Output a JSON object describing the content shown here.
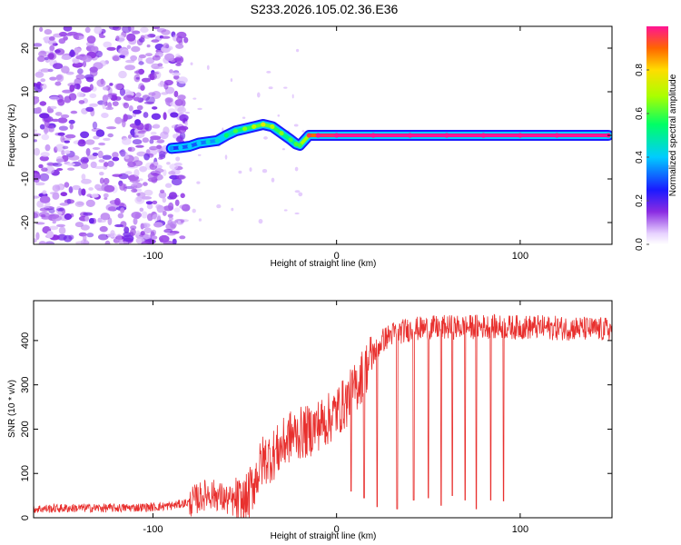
{
  "title": "S233.2026.105.02.36.E36",
  "chart_data": [
    {
      "type": "heatmap",
      "xlabel": "Height of straight line (km)",
      "ylabel": "Frequency (Hz)",
      "xlim": [
        -165,
        150
      ],
      "ylim": [
        -25,
        25
      ],
      "xticks": [
        -100,
        0,
        100
      ],
      "yticks": [
        -20,
        -10,
        0,
        10,
        20
      ],
      "colorbar": {
        "label": "Normalized spectral amplitude",
        "range": [
          0,
          1
        ],
        "ticks": [
          "0.0",
          "0.2",
          "0.4",
          "0.6",
          "0.8"
        ],
        "tick_values": [
          0,
          0.2,
          0.4,
          0.6,
          0.8
        ]
      },
      "noise_region_x": [
        -165,
        -88
      ],
      "ridge_trace": {
        "x": [
          -90,
          -85,
          -80,
          -75,
          -70,
          -65,
          -60,
          -55,
          -50,
          -45,
          -40,
          -35,
          -30,
          -25,
          -22,
          -20,
          -15,
          -10,
          0,
          20,
          40,
          60,
          80,
          100,
          120,
          148
        ],
        "y": [
          -3,
          -2.8,
          -2.5,
          -1.8,
          -1.5,
          -1.2,
          0,
          1,
          1.5,
          2,
          2.5,
          2,
          0.5,
          -1,
          -2,
          -2.3,
          0,
          0,
          0,
          0,
          0,
          0,
          0,
          0,
          0,
          0
        ],
        "amplitude": [
          0.25,
          0.3,
          0.3,
          0.3,
          0.35,
          0.35,
          0.45,
          0.5,
          0.55,
          0.6,
          0.65,
          0.6,
          0.55,
          0.5,
          0.5,
          0.5,
          0.85,
          0.95,
          1.0,
          1.0,
          1.0,
          1.0,
          1.0,
          1.0,
          1.0,
          1.0
        ]
      }
    },
    {
      "type": "line",
      "xlabel": "Height of straight line (km)",
      "ylabel": "SNR (10 * v/v)",
      "xlim": [
        -165,
        150
      ],
      "ylim": [
        0,
        490
      ],
      "xticks": [
        -100,
        0,
        100
      ],
      "yticks": [
        0,
        100,
        200,
        300,
        400
      ],
      "series": [
        {
          "name": "SNR",
          "color": "#e8302e",
          "x": [
            -165,
            -140,
            -120,
            -100,
            -90,
            -80,
            -75,
            -70,
            -65,
            -60,
            -55,
            -50,
            -45,
            -40,
            -35,
            -30,
            -25,
            -20,
            -15,
            -10,
            -5,
            0,
            5,
            10,
            15,
            20,
            25,
            30,
            35,
            40,
            50,
            60,
            70,
            80,
            90,
            100,
            110,
            120,
            130,
            140,
            150
          ],
          "y": [
            20,
            22,
            22,
            24,
            27,
            35,
            45,
            55,
            50,
            40,
            35,
            30,
            80,
            130,
            140,
            160,
            185,
            190,
            195,
            210,
            220,
            240,
            260,
            290,
            330,
            370,
            400,
            415,
            420,
            425,
            428,
            430,
            430,
            432,
            430,
            430,
            430,
            428,
            428,
            425,
            425
          ],
          "dips": [
            {
              "x": 8,
              "y": 60
            },
            {
              "x": 15,
              "y": 45
            },
            {
              "x": 22,
              "y": 25
            },
            {
              "x": 33,
              "y": 20
            },
            {
              "x": 42,
              "y": 40
            },
            {
              "x": 50,
              "y": 45
            },
            {
              "x": 57,
              "y": 28
            },
            {
              "x": 63,
              "y": 50
            },
            {
              "x": 70,
              "y": 40
            },
            {
              "x": 76,
              "y": 20
            },
            {
              "x": 84,
              "y": 40
            },
            {
              "x": 91,
              "y": 38
            }
          ]
        }
      ]
    }
  ]
}
